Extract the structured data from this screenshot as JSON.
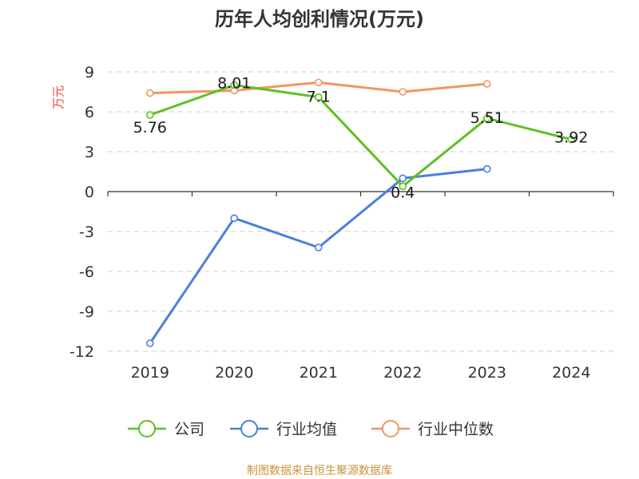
{
  "chart_data": {
    "type": "line",
    "title": "历年人均创利情况(万元)",
    "ylabel": "万元",
    "xlabel": "",
    "categories": [
      "2019",
      "2020",
      "2021",
      "2022",
      "2023",
      "2024"
    ],
    "ylim": [
      -12,
      9
    ],
    "yticks": [
      9,
      6,
      3,
      0,
      -3,
      -6,
      -9,
      -12
    ],
    "grid": true,
    "legend_position": "bottom",
    "series": [
      {
        "name": "公司",
        "color": "#5cc121",
        "values": [
          5.76,
          8.01,
          7.1,
          0.4,
          5.51,
          3.92
        ],
        "labels": [
          "5.76",
          "8.01",
          "7.1",
          "0.4",
          "5.51",
          "3.92"
        ]
      },
      {
        "name": "行业均值",
        "color": "#4a7fdb",
        "values": [
          -11.4,
          -2,
          -4.2,
          1,
          1.7,
          null
        ]
      },
      {
        "name": "行业中位数",
        "color": "#f59463",
        "values": [
          7.4,
          7.6,
          8.2,
          7.5,
          8.1,
          null
        ]
      }
    ]
  },
  "source_text": "制图数据来自恒生聚源数据库"
}
